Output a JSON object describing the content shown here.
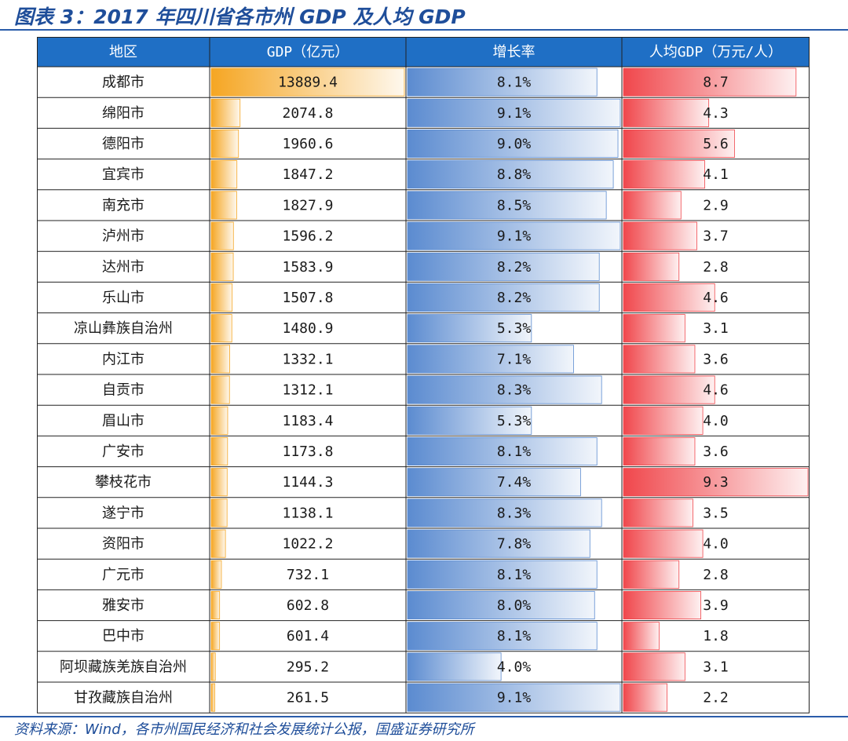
{
  "title": "图表 3：2017 年四川省各市州 GDP 及人均 GDP",
  "source": "资料来源：Wind，各市州国民经济和社会发展统计公报，国盛证券研究所",
  "colors": {
    "header_bg": "#1f6fc5",
    "gdp_bar": "#f5a623",
    "growth_bar": "#5b8bd0",
    "percap_bar": "#f0474c",
    "title": "#1f4e9a"
  },
  "chart_data": {
    "type": "table",
    "columns": [
      "地区",
      "GDP（亿元）",
      "增长率",
      "人均GDP（万元/人）"
    ],
    "rows": [
      {
        "region": "成都市",
        "gdp": 13889.4,
        "gdp_label": "13889.4",
        "growth": 8.1,
        "growth_label": "8.1%",
        "percap": 8.7,
        "percap_label": "8.7"
      },
      {
        "region": "绵阳市",
        "gdp": 2074.8,
        "gdp_label": "2074.8",
        "growth": 9.1,
        "growth_label": "9.1%",
        "percap": 4.3,
        "percap_label": "4.3"
      },
      {
        "region": "德阳市",
        "gdp": 1960.6,
        "gdp_label": "1960.6",
        "growth": 9.0,
        "growth_label": "9.0%",
        "percap": 5.6,
        "percap_label": "5.6"
      },
      {
        "region": "宜宾市",
        "gdp": 1847.2,
        "gdp_label": "1847.2",
        "growth": 8.8,
        "growth_label": "8.8%",
        "percap": 4.1,
        "percap_label": "4.1"
      },
      {
        "region": "南充市",
        "gdp": 1827.9,
        "gdp_label": "1827.9",
        "growth": 8.5,
        "growth_label": "8.5%",
        "percap": 2.9,
        "percap_label": "2.9"
      },
      {
        "region": "泸州市",
        "gdp": 1596.2,
        "gdp_label": "1596.2",
        "growth": 9.1,
        "growth_label": "9.1%",
        "percap": 3.7,
        "percap_label": "3.7"
      },
      {
        "region": "达州市",
        "gdp": 1583.9,
        "gdp_label": "1583.9",
        "growth": 8.2,
        "growth_label": "8.2%",
        "percap": 2.8,
        "percap_label": "2.8"
      },
      {
        "region": "乐山市",
        "gdp": 1507.8,
        "gdp_label": "1507.8",
        "growth": 8.2,
        "growth_label": "8.2%",
        "percap": 4.6,
        "percap_label": "4.6"
      },
      {
        "region": "凉山彝族自治州",
        "gdp": 1480.9,
        "gdp_label": "1480.9",
        "growth": 5.3,
        "growth_label": "5.3%",
        "percap": 3.1,
        "percap_label": "3.1"
      },
      {
        "region": "内江市",
        "gdp": 1332.1,
        "gdp_label": "1332.1",
        "growth": 7.1,
        "growth_label": "7.1%",
        "percap": 3.6,
        "percap_label": "3.6"
      },
      {
        "region": "自贡市",
        "gdp": 1312.1,
        "gdp_label": "1312.1",
        "growth": 8.3,
        "growth_label": "8.3%",
        "percap": 4.6,
        "percap_label": "4.6"
      },
      {
        "region": "眉山市",
        "gdp": 1183.4,
        "gdp_label": "1183.4",
        "growth": 5.3,
        "growth_label": "5.3%",
        "percap": 4.0,
        "percap_label": "4.0"
      },
      {
        "region": "广安市",
        "gdp": 1173.8,
        "gdp_label": "1173.8",
        "growth": 8.1,
        "growth_label": "8.1%",
        "percap": 3.6,
        "percap_label": "3.6"
      },
      {
        "region": "攀枝花市",
        "gdp": 1144.3,
        "gdp_label": "1144.3",
        "growth": 7.4,
        "growth_label": "7.4%",
        "percap": 9.3,
        "percap_label": "9.3"
      },
      {
        "region": "遂宁市",
        "gdp": 1138.1,
        "gdp_label": "1138.1",
        "growth": 8.3,
        "growth_label": "8.3%",
        "percap": 3.5,
        "percap_label": "3.5"
      },
      {
        "region": "资阳市",
        "gdp": 1022.2,
        "gdp_label": "1022.2",
        "growth": 7.8,
        "growth_label": "7.8%",
        "percap": 4.0,
        "percap_label": "4.0"
      },
      {
        "region": "广元市",
        "gdp": 732.1,
        "gdp_label": "732.1",
        "growth": 8.1,
        "growth_label": "8.1%",
        "percap": 2.8,
        "percap_label": "2.8"
      },
      {
        "region": "雅安市",
        "gdp": 602.8,
        "gdp_label": "602.8",
        "growth": 8.0,
        "growth_label": "8.0%",
        "percap": 3.9,
        "percap_label": "3.9"
      },
      {
        "region": "巴中市",
        "gdp": 601.4,
        "gdp_label": "601.4",
        "growth": 8.1,
        "growth_label": "8.1%",
        "percap": 1.8,
        "percap_label": "1.8"
      },
      {
        "region": "阿坝藏族羌族自治州",
        "gdp": 295.2,
        "gdp_label": "295.2",
        "growth": 4.0,
        "growth_label": "4.0%",
        "percap": 3.1,
        "percap_label": "3.1"
      },
      {
        "region": "甘孜藏族自治州",
        "gdp": 261.5,
        "gdp_label": "261.5",
        "growth": 9.1,
        "growth_label": "9.1%",
        "percap": 2.2,
        "percap_label": "2.2"
      }
    ]
  }
}
